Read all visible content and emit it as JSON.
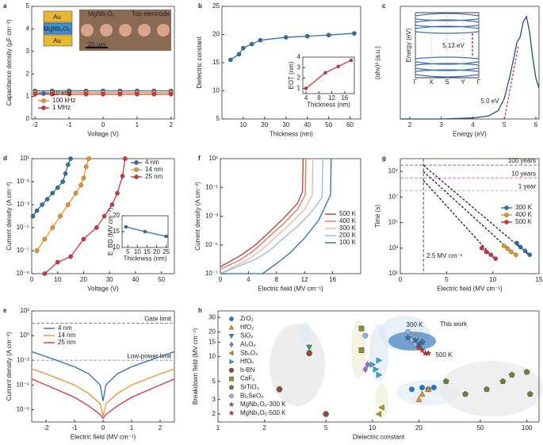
{
  "chart_data": [
    {
      "panel": "a",
      "type": "line",
      "xlabel": "Voltage (V)",
      "ylabel": "Capacitance density (µF cm⁻²)",
      "xlim": [
        -2.1,
        2.1
      ],
      "ylim": [
        0,
        5
      ],
      "xticks": [
        -2,
        -1,
        0,
        1,
        2
      ],
      "yticks": [
        0,
        1,
        2,
        3,
        4,
        5
      ],
      "series": [
        {
          "name": "10 kHz",
          "color": "#2f6fb0",
          "marker": "o",
          "x": [
            -2,
            -1.5,
            -1,
            -0.5,
            0,
            0.5,
            1,
            1.5,
            2
          ],
          "values": [
            1.25,
            1.25,
            1.25,
            1.25,
            1.25,
            1.25,
            1.25,
            1.25,
            1.25
          ]
        },
        {
          "name": "100 kHz",
          "color": "#f0922b",
          "marker": "o",
          "x": [
            -2,
            -1.5,
            -1,
            -0.5,
            0,
            0.5,
            1,
            1.5,
            2
          ],
          "values": [
            1.18,
            1.18,
            1.18,
            1.18,
            1.18,
            1.18,
            1.18,
            1.18,
            1.18
          ]
        },
        {
          "name": "1 MHz",
          "color": "#d9323a",
          "marker": "o",
          "x": [
            -2,
            -1.5,
            -1,
            -0.5,
            0,
            0.5,
            1,
            1.5,
            2
          ],
          "values": [
            1.1,
            1.1,
            1.1,
            1.1,
            1.1,
            1.1,
            1.1,
            1.1,
            1.1
          ]
        }
      ],
      "annotations": [
        "Au",
        "MgNb₂O₆",
        "Au",
        "20 µm",
        "MgNb₂O₆",
        "Top electrode"
      ]
    },
    {
      "panel": "b",
      "type": "line",
      "xlabel": "Thickness (nm)",
      "ylabel": "Dielectric constant",
      "xlim": [
        0,
        65
      ],
      "ylim": [
        5,
        25
      ],
      "xticks": [
        10,
        20,
        30,
        40,
        50,
        60
      ],
      "yticks": [
        5,
        10,
        15,
        20,
        25
      ],
      "series": [
        {
          "color": "#2f6fb0",
          "marker": "o",
          "x": [
            4,
            8,
            10,
            14,
            18,
            30,
            40,
            50,
            62
          ],
          "values": [
            15.5,
            16.5,
            17.6,
            18.3,
            19,
            19.5,
            19.7,
            19.9,
            20.2
          ]
        }
      ]
    },
    {
      "type": "line",
      "xlabel": "Thickness (nm)",
      "ylabel": "EOT (nm)",
      "xlim": [
        3,
        19
      ],
      "ylim": [
        0.5,
        4
      ],
      "xticks": [
        4,
        8,
        12,
        16
      ],
      "yticks": [
        1,
        2,
        3,
        4
      ],
      "series": [
        {
          "color": "#d9323a",
          "marker": "o",
          "x": [
            4,
            10,
            14,
            18
          ],
          "values": [
            1,
            2.5,
            3.1,
            3.7
          ]
        }
      ]
    },
    {
      "panel": "c",
      "type": "line",
      "xlabel": "Energy (eV)",
      "ylabel": "(αhν)² (a.u.)",
      "xlim": [
        1.7,
        6.1
      ],
      "ylim": [
        0,
        1.1
      ],
      "xticks": [
        2,
        3,
        4,
        5,
        6
      ],
      "series": [
        {
          "color": "#1f4e8c",
          "x": [
            1.7,
            3,
            4,
            4.5,
            4.8,
            5,
            5.2,
            5.4,
            5.5,
            5.6,
            5.7,
            5.8,
            5.9,
            6,
            6.1
          ],
          "values": [
            0,
            0,
            0.01,
            0.03,
            0.08,
            0.2,
            0.45,
            0.75,
            0.8,
            0.95,
            1,
            0.85,
            0.6,
            0.4,
            0.3
          ]
        },
        {
          "color": "#d9323a",
          "dash": true,
          "x": [
            5,
            5.45
          ],
          "values": [
            0,
            0.72
          ]
        }
      ],
      "annotations": [
        "5.0 eV"
      ]
    },
    {
      "type": "bands",
      "ylabel": "Energy (eV)",
      "categories": [
        "Γ",
        "X",
        "S",
        "Y",
        "Γ"
      ],
      "annotations": [
        "5.13 eV"
      ]
    },
    {
      "panel": "d",
      "type": "line",
      "xlabel": "Voltage (V)",
      "ylabel": "Current density (A cm⁻²)",
      "ylog": true,
      "xlim": [
        0,
        55
      ],
      "ylim": [
        1e-09,
        10
      ],
      "xticks": [
        0,
        10,
        20,
        30,
        40,
        50
      ],
      "yticks": [
        {
          "value": 1e-09,
          "label": "10⁻⁹"
        },
        {
          "value": 1e-07,
          "label": "10⁻⁷"
        },
        {
          "value": 1e-05,
          "label": "10⁻⁵"
        },
        {
          "value": 0.001,
          "label": "10⁻³"
        },
        {
          "value": 0.1,
          "label": "10⁻¹"
        },
        {
          "value": 10,
          "label": "10¹"
        }
      ],
      "series": [
        {
          "name": "4 nm",
          "color": "#2f6fb0",
          "marker": "o",
          "x": [
            0.5,
            2,
            4,
            6,
            8,
            10,
            12,
            13,
            14,
            15
          ],
          "values": [
            0.0001,
            0.0003,
            0.001,
            0.003,
            0.01,
            0.03,
            0.1,
            0.5,
            3,
            10
          ]
        },
        {
          "name": "14 nm",
          "color": "#f0922b",
          "marker": "o",
          "x": [
            2,
            5,
            8,
            11,
            14,
            17,
            19,
            20,
            21,
            22
          ],
          "values": [
            1e-07,
            1e-06,
            1e-05,
            0.0001,
            0.001,
            0.01,
            0.05,
            0.2,
            2,
            10
          ]
        },
        {
          "name": "25 nm",
          "color": "#d9323a",
          "marker": "o",
          "x": [
            5,
            10,
            15,
            20,
            25,
            28,
            31,
            33,
            35,
            36
          ],
          "values": [
            1e-09,
            1e-08,
            3e-08,
            1e-06,
            1e-05,
            0.0001,
            0.001,
            0.01,
            0.3,
            10
          ]
        }
      ]
    },
    {
      "type": "line",
      "xlabel": "Thickness (nm)",
      "ylabel": "E_BD (MV cm⁻¹)",
      "xlim": [
        2,
        26
      ],
      "ylim": [
        10,
        20
      ],
      "xticks": [
        5,
        10,
        15,
        20,
        25
      ],
      "yticks": [
        10,
        15,
        20
      ],
      "series": [
        {
          "color": "#2f6fb0",
          "marker": "o",
          "x": [
            4,
            14,
            25
          ],
          "values": [
            16.5,
            15,
            13.5
          ]
        }
      ]
    },
    {
      "panel": "e",
      "type": "line",
      "xlabel": "Electric field (MV cm⁻¹)",
      "ylabel": "Current density (A cm⁻²)",
      "ylog": true,
      "xlim": [
        -2.5,
        2.5
      ],
      "ylim": [
        1e-07,
        100
      ],
      "xticks": [
        -2,
        -1,
        0,
        1,
        2
      ],
      "yticks": [
        {
          "value": 1e-06,
          "label": "10⁻⁶"
        },
        {
          "value": 0.0001,
          "label": "10⁻⁴"
        },
        {
          "value": 0.01,
          "label": "10⁻²"
        },
        {
          "value": 1,
          "label": "10⁰"
        },
        {
          "value": 100,
          "label": "10²"
        }
      ],
      "hlines": [
        {
          "value": 10,
          "label": "Gate limit"
        },
        {
          "value": 0.01,
          "label": "Low-power limit"
        }
      ],
      "series": [
        {
          "name": "4 nm",
          "color": "#2f6fb0",
          "x": [
            -2.5,
            -2,
            -1,
            -0.5,
            -0.1,
            0,
            0.1,
            0.5,
            1,
            2,
            2.5
          ],
          "values": [
            0.05,
            0.02,
            0.003,
            0.0008,
            0.0001,
            5e-06,
            0.0001,
            0.0008,
            0.003,
            0.02,
            0.05
          ]
        },
        {
          "name": "14 nm",
          "color": "#f0922b",
          "x": [
            -2.5,
            -2,
            -1,
            -0.5,
            -0.1,
            0,
            0.1,
            0.5,
            1,
            2,
            2.5
          ],
          "values": [
            0.002,
            0.0008,
            0.0001,
            2e-05,
            3e-06,
            3e-07,
            3e-06,
            2e-05,
            0.0001,
            0.0008,
            0.002
          ]
        },
        {
          "name": "25 nm",
          "color": "#d9323a",
          "x": [
            -2.5,
            -2,
            -1,
            -0.5,
            -0.1,
            0,
            0.1,
            0.5,
            1,
            2,
            2.5
          ],
          "values": [
            0.0003,
            0.0001,
            1e-05,
            2e-06,
            4e-07,
            2e-07,
            4e-07,
            2e-06,
            1e-05,
            0.0001,
            0.0003
          ]
        }
      ]
    },
    {
      "panel": "f",
      "type": "line",
      "xlabel": "Electric field (MV cm⁻¹)",
      "ylabel": "Current density (A cm⁻²)",
      "ylog": true,
      "xlim": [
        0,
        20
      ],
      "ylim": [
        1e-07,
        10
      ],
      "xticks": [
        0,
        4,
        8,
        12,
        16
      ],
      "yticks": [
        {
          "value": 1e-07,
          "label": "10⁻⁷"
        },
        {
          "value": 1e-05,
          "label": "10⁻⁵"
        },
        {
          "value": 0.001,
          "label": "10⁻³"
        },
        {
          "value": 0.1,
          "label": "10⁻¹"
        },
        {
          "value": 10,
          "label": "10¹"
        }
      ],
      "series": [
        {
          "name": "500 K",
          "color": "#c0392b",
          "x": [
            0,
            3,
            5,
            7,
            9,
            11,
            11.7,
            11.8
          ],
          "values": [
            3e-07,
            2e-06,
            1e-05,
            8e-05,
            0.0007,
            0.008,
            0.05,
            10
          ]
        },
        {
          "name": "400 K",
          "color": "#e8735a",
          "x": [
            0,
            3,
            5,
            7,
            9,
            11,
            12.1,
            12.2
          ],
          "values": [
            2e-07,
            1e-06,
            5e-06,
            4e-05,
            0.0003,
            0.003,
            0.03,
            10
          ]
        },
        {
          "name": "300 K",
          "color": "#f2b0a0",
          "x": [
            0,
            4,
            6,
            8,
            10,
            12,
            13.1,
            13.2
          ],
          "values": [
            1e-07,
            1e-06,
            5e-06,
            4e-05,
            0.0003,
            0.003,
            0.03,
            10
          ]
        },
        {
          "name": "200 K",
          "color": "#8fbcd8",
          "x": [
            0,
            5,
            7,
            9,
            11,
            13,
            14.5,
            14.6
          ],
          "values": [
            1e-07,
            1e-06,
            4e-06,
            3e-05,
            0.0002,
            0.002,
            0.02,
            10
          ]
        },
        {
          "name": "100 K",
          "color": "#2e6da4",
          "x": [
            0,
            6,
            8,
            10,
            12,
            14,
            15.7,
            15.8
          ],
          "values": [
            1e-07,
            1e-07,
            5e-07,
            3e-06,
            3e-05,
            0.0005,
            0.03,
            10
          ]
        }
      ]
    },
    {
      "panel": "g",
      "type": "line",
      "xlabel": "Electric field (MV cm⁻¹)",
      "ylabel": "Time (s)",
      "ylog": true,
      "xlim": [
        0,
        15
      ],
      "ylim": [
        10,
        10000000000
      ],
      "xticks": [
        0,
        5,
        10,
        15
      ],
      "yticks": [
        {
          "value": 10,
          "label": "10¹"
        },
        {
          "value": 1000,
          "label": "10³"
        },
        {
          "value": 100000,
          "label": "10⁵"
        },
        {
          "value": 10000000,
          "label": "10⁷"
        },
        {
          "value": 1000000000,
          "label": "10⁹"
        }
      ],
      "hlines": [
        {
          "value": 3150000000,
          "label": "100 years"
        },
        {
          "value": 315000000,
          "label": "10 years"
        },
        {
          "value": 31500000,
          "label": "1 year"
        }
      ],
      "vlines": [
        {
          "value": 2.5,
          "label": "2.5 MV cm⁻¹"
        }
      ],
      "series": [
        {
          "name": "300 K",
          "color": "#2f6fb0",
          "marker": "o",
          "x": [
            12.6,
            13,
            13.5,
            14
          ],
          "values": [
            2500,
            1200,
            600,
            300
          ],
          "fit": {
            "x": [
              2.5,
              14
            ],
            "values": [
              3000000000,
              250
            ]
          }
        },
        {
          "name": "400 K",
          "color": "#f0922b",
          "marker": "o",
          "x": [
            11.2,
            11.6,
            12,
            12.5
          ],
          "values": [
            1500,
            900,
            500,
            300
          ],
          "fit": {
            "x": [
              2.5,
              12.5
            ],
            "values": [
              1000000000,
              250
            ]
          }
        },
        {
          "name": "500 K",
          "color": "#d9323a",
          "marker": "o",
          "x": [
            8.8,
            9.3,
            9.8,
            10.3
          ],
          "values": [
            1000,
            500,
            300,
            150
          ],
          "fit": {
            "x": [
              2.5,
              10.3
            ],
            "values": [
              200000000,
              120
            ]
          }
        }
      ]
    },
    {
      "panel": "h",
      "type": "scatter",
      "xlabel": "Dielectric constant",
      "ylabel": "Breakdown field (MV cm⁻¹)",
      "xlog": true,
      "ylog": true,
      "xlim": [
        1,
        120
      ],
      "ylim": [
        1.6,
        36
      ],
      "xticks": [
        1,
        2,
        5,
        10,
        20,
        50,
        100
      ],
      "yticks": [
        2,
        3,
        5,
        10,
        15,
        20,
        30
      ],
      "series": [
        {
          "name": "ZrO₂",
          "color": "#1f78d1",
          "marker": "o",
          "x": [
            18,
            21,
            23,
            25
          ],
          "values": [
            4,
            4.2,
            4,
            4.2
          ]
        },
        {
          "name": "HfO₂",
          "color": "#f0922b",
          "marker": "^",
          "x": [
            20,
            21,
            23
          ],
          "values": [
            3,
            3.5,
            4
          ]
        },
        {
          "name": "SiO₂",
          "color": "#2aa36b",
          "marker": "v",
          "x": [
            3.9
          ],
          "values": [
            13
          ]
        },
        {
          "name": "Al₂O₃",
          "color": "#9b6fd0",
          "marker": "d",
          "x": [
            9,
            9.3
          ],
          "values": [
            7,
            8
          ]
        },
        {
          "name": "Sb₂O₃",
          "color": "#b59a1a",
          "marker": "<",
          "x": [
            11,
            11.5
          ],
          "values": [
            2,
            2.4
          ]
        },
        {
          "name": "HfOₓ",
          "color": "#22b5c8",
          "marker": ">",
          "x": [
            10,
            11,
            10.5,
            11
          ],
          "values": [
            8,
            9,
            7,
            6
          ]
        },
        {
          "name": "h-BN",
          "color": "#8b4a3a",
          "marker": "h",
          "x": [
            3.9,
            2.5,
            5
          ],
          "values": [
            11,
            4,
            2
          ]
        },
        {
          "name": "CaF₂",
          "color": "#8f8f2a",
          "marker": "s",
          "x": [
            8.5,
            8.5
          ],
          "values": [
            22,
            12
          ]
        },
        {
          "name": "SrTiO₃",
          "color": "#6f7f3a",
          "marker": "p",
          "x": [
            30,
            40,
            55,
            70,
            80,
            100,
            105
          ],
          "values": [
            5,
            3.5,
            4,
            5,
            6,
            6.5,
            3.5
          ]
        },
        {
          "name": "Bi₂SeO₅",
          "color": "#8fb7de",
          "marker": "o",
          "x": [
            17,
            18,
            19,
            20,
            19,
            21,
            9
          ],
          "values": [
            20,
            16,
            14,
            13,
            17,
            15,
            18
          ]
        },
        {
          "name": "MgNb₂O₆-300 K",
          "color": "#2f6fb0",
          "marker": "*",
          "x": [
            17,
            19,
            20,
            21
          ],
          "values": [
            17,
            16,
            14,
            15
          ]
        },
        {
          "name": "MgNb₂O₆-500 K",
          "color": "#e0242f",
          "marker": "*",
          "x": [
            20,
            21,
            22,
            23
          ],
          "values": [
            13,
            12,
            11,
            11
          ]
        }
      ],
      "annotations": [
        "This work",
        "300 K",
        "500 K"
      ]
    }
  ]
}
